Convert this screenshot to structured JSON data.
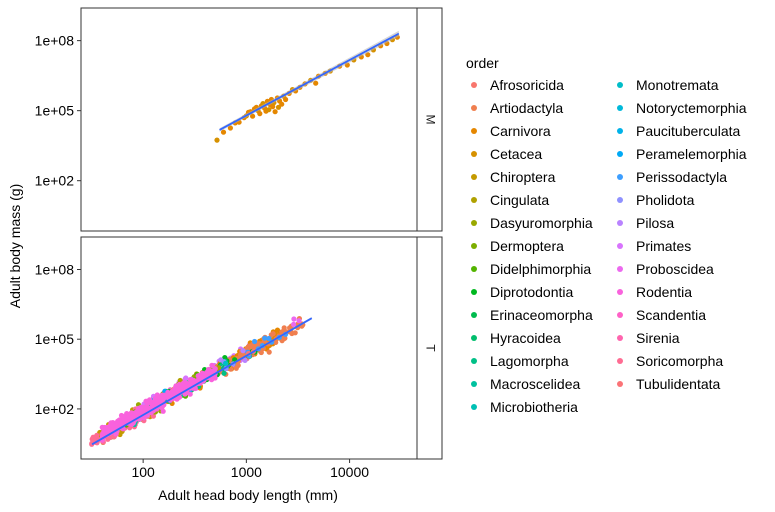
{
  "chart_data": {
    "type": "scatter",
    "xlabel": "Adult head body length (mm)",
    "ylabel": "Adult body mass (g)",
    "x_scale": "log10",
    "y_scale": "log10",
    "xlim": [
      25,
      45000
    ],
    "ylim": [
      0.7,
      2500000000
    ],
    "x_ticks": [
      {
        "value": 100,
        "label": "100"
      },
      {
        "value": 1000,
        "label": "1000"
      },
      {
        "value": 10000,
        "label": "10000"
      }
    ],
    "y_ticks": [
      {
        "value": 100,
        "label": "1e+02"
      },
      {
        "value": 100000,
        "label": "1e+05"
      },
      {
        "value": 100000000,
        "label": "1e+08"
      }
    ],
    "grid": false,
    "legend": {
      "title": "order",
      "position": "right",
      "columns": 2,
      "entries": [
        {
          "name": "Afrosoricida",
          "color": "#F8766D"
        },
        {
          "name": "Artiodactyla",
          "color": "#F07F4F"
        },
        {
          "name": "Carnivora",
          "color": "#E58700"
        },
        {
          "name": "Cetacea",
          "color": "#D69100"
        },
        {
          "name": "Chiroptera",
          "color": "#C49A00"
        },
        {
          "name": "Cingulata",
          "color": "#B0A100"
        },
        {
          "name": "Dasyuromorphia",
          "color": "#99A800"
        },
        {
          "name": "Dermoptera",
          "color": "#7CAE00"
        },
        {
          "name": "Didelphimorphia",
          "color": "#53B400"
        },
        {
          "name": "Diprotodontia",
          "color": "#00B81F"
        },
        {
          "name": "Erinaceomorpha",
          "color": "#00BB4E"
        },
        {
          "name": "Hyracoidea",
          "color": "#00BE6D"
        },
        {
          "name": "Lagomorpha",
          "color": "#00C087"
        },
        {
          "name": "Macroscelidea",
          "color": "#00C19F"
        },
        {
          "name": "Microbiotheria",
          "color": "#00C0B4"
        },
        {
          "name": "Monotremata",
          "color": "#00BDC8"
        },
        {
          "name": "Notoryctemorphia",
          "color": "#00B9DA"
        },
        {
          "name": "Paucituberculata",
          "color": "#00B2E9"
        },
        {
          "name": "Peramelemorphia",
          "color": "#00A9F6"
        },
        {
          "name": "Perissodactyla",
          "color": "#3D9EFF"
        },
        {
          "name": "Pholidota",
          "color": "#8F91FF"
        },
        {
          "name": "Pilosa",
          "color": "#B983FF"
        },
        {
          "name": "Primates",
          "color": "#D874FD"
        },
        {
          "name": "Proboscidea",
          "color": "#EC69EF"
        },
        {
          "name": "Rodentia",
          "color": "#F962DD"
        },
        {
          "name": "Scandentia",
          "color": "#FF61C7"
        },
        {
          "name": "Sirenia",
          "color": "#FF65AE"
        },
        {
          "name": "Soricomorpha",
          "color": "#FF6C93"
        },
        {
          "name": "Tubulidentata",
          "color": "#FB7377"
        }
      ]
    },
    "trend_color": "#3366FF",
    "band_color": "#B4B4B4",
    "panels": [
      {
        "strip_label": "M",
        "fit": {
          "x0": 550,
          "y0": 15000,
          "x1": 30000,
          "y1": 200000000,
          "se": 0.12
        },
        "points": [
          [
            520,
            5500,
            3
          ],
          [
            600,
            12000,
            2
          ],
          [
            700,
            18000,
            2
          ],
          [
            780,
            30000,
            2
          ],
          [
            850,
            32000,
            2
          ],
          [
            950,
            50000,
            2
          ],
          [
            1000,
            60000,
            3
          ],
          [
            1050,
            85000,
            2
          ],
          [
            1100,
            90000,
            2
          ],
          [
            1150,
            58000,
            2
          ],
          [
            1200,
            120000,
            2
          ],
          [
            1250,
            140000,
            2
          ],
          [
            1300,
            100000,
            3
          ],
          [
            1350,
            75000,
            2
          ],
          [
            1400,
            160000,
            2
          ],
          [
            1450,
            200000,
            3
          ],
          [
            1500,
            130000,
            2
          ],
          [
            1550,
            95000,
            2
          ],
          [
            1600,
            250000,
            2
          ],
          [
            1650,
            110000,
            3
          ],
          [
            1700,
            180000,
            2
          ],
          [
            1750,
            300000,
            2
          ],
          [
            1800,
            150000,
            2
          ],
          [
            1850,
            220000,
            3
          ],
          [
            1900,
            90000,
            2
          ],
          [
            2000,
            350000,
            2
          ],
          [
            2050,
            140000,
            3
          ],
          [
            2100,
            260000,
            2
          ],
          [
            2200,
            190000,
            2
          ],
          [
            2300,
            420000,
            3
          ],
          [
            2400,
            300000,
            2
          ],
          [
            2600,
            550000,
            2
          ],
          [
            2800,
            800000,
            3
          ],
          [
            3000,
            700000,
            2
          ],
          [
            3300,
            1000000,
            2
          ],
          [
            3700,
            1400000,
            2
          ],
          [
            4200,
            2000000,
            3
          ],
          [
            4700,
            1500000,
            2
          ],
          [
            5000,
            3000000,
            2
          ],
          [
            5800,
            4000000,
            2
          ],
          [
            6500,
            5000000,
            3
          ],
          [
            8000,
            8000000,
            2
          ],
          [
            9500,
            9000000,
            2
          ],
          [
            11000,
            15000000,
            3
          ],
          [
            13000,
            20000000,
            2
          ],
          [
            15000,
            25000000,
            2
          ],
          [
            17000,
            40000000,
            3
          ],
          [
            20000,
            60000000,
            2
          ],
          [
            23000,
            75000000,
            2
          ],
          [
            26000,
            110000000,
            3
          ],
          [
            29000,
            140000000,
            2
          ]
        ]
      },
      {
        "strip_label": "T",
        "fit": {
          "x0": 32,
          "y0": 3,
          "x1": 4300,
          "y1": 800000,
          "se": 0.05
        },
        "points": []
      }
    ]
  }
}
